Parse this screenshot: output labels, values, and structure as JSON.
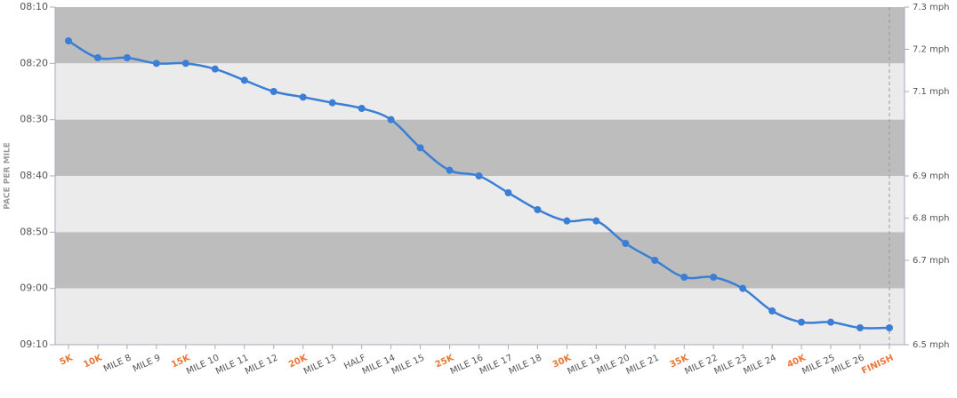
{
  "chart_data": {
    "type": "line",
    "y_label": "PACE PER MILE",
    "categories": [
      "5K",
      "10K",
      "MILE 8",
      "MILE 9",
      "15K",
      "MILE 10",
      "MILE 11",
      "MILE 12",
      "20K",
      "MILE 13",
      "HALF",
      "MILE 14",
      "MILE 15",
      "25K",
      "MILE 16",
      "MILE 17",
      "MILE 18",
      "30K",
      "MILE 19",
      "MILE 20",
      "MILE 21",
      "35K",
      "MILE 22",
      "MILE 23",
      "MILE 24",
      "40K",
      "MILE 25",
      "MILE 26",
      "FINISH"
    ],
    "category_label_colors": [
      "#e8773a",
      "#e8773a",
      "#555555",
      "#555555",
      "#e8773a",
      "#555555",
      "#555555",
      "#555555",
      "#e8773a",
      "#555555",
      "#555555",
      "#555555",
      "#555555",
      "#e8773a",
      "#555555",
      "#555555",
      "#555555",
      "#e8773a",
      "#555555",
      "#555555",
      "#555555",
      "#e8773a",
      "#555555",
      "#555555",
      "#555555",
      "#e8773a",
      "#555555",
      "#555555",
      "#e8773a"
    ],
    "series": [
      {
        "color": "#3a7fd5",
        "values": [
          496,
          499,
          499,
          500,
          500,
          501,
          503,
          505,
          506,
          507,
          508,
          510,
          515,
          519,
          520,
          523,
          526,
          528,
          528,
          532,
          535,
          538,
          538,
          540,
          544,
          546,
          546,
          547,
          547
        ]
      }
    ],
    "ylim": [
      550,
      490
    ],
    "yticks": [
      {
        "value": 490,
        "label": "08:10"
      },
      {
        "value": 500,
        "label": "08:20"
      },
      {
        "value": 510,
        "label": "08:30"
      },
      {
        "value": 520,
        "label": "08:40"
      },
      {
        "value": 530,
        "label": "08:50"
      },
      {
        "value": 540,
        "label": "09:00"
      },
      {
        "value": 550,
        "label": "09:10"
      }
    ],
    "y2lim": [
      6.5,
      7.3
    ],
    "y2ticks": [
      {
        "value": 6.5,
        "label": "6.5 mph"
      },
      {
        "value": 6.7,
        "label": "6.7 mph"
      },
      {
        "value": 6.8,
        "label": "6.8 mph"
      },
      {
        "value": 6.9,
        "label": "6.9 mph"
      },
      {
        "value": 7.1,
        "label": "7.1 mph"
      },
      {
        "value": 7.2,
        "label": "7.2 mph"
      },
      {
        "value": 7.3,
        "label": "7.3 mph"
      }
    ],
    "band_colors": [
      "#bdbdbd",
      "#ebebeb"
    ]
  }
}
